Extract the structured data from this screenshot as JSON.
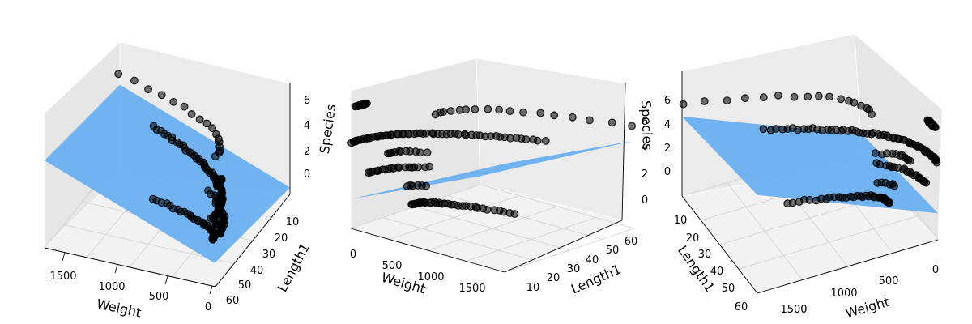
{
  "chart_data": [
    {
      "type": "scatter3d",
      "view": "left",
      "title": "",
      "xlabel": "Weight",
      "ylabel": "Length1",
      "zlabel": "Species",
      "xticks": [
        "1500",
        "1000",
        "500",
        "0"
      ],
      "yticks": [
        "10",
        "20",
        "30",
        "40",
        "50",
        "60"
      ],
      "zticks": [
        "0",
        "2",
        "4",
        "6"
      ],
      "xlim": [
        0,
        1650
      ],
      "ylim": [
        7,
        60
      ],
      "zlim": [
        -1,
        7
      ],
      "plane_color": "#6ab0f0",
      "point_color": "#000000",
      "plane_corners": [
        [
          0,
          7,
          0.7
        ],
        [
          1650,
          7,
          5.3
        ],
        [
          1650,
          60,
          4.1
        ],
        [
          0,
          60,
          -0.5
        ]
      ]
    },
    {
      "type": "scatter3d",
      "view": "front",
      "title": "",
      "xlabel": "Weight",
      "ylabel": "Length1",
      "zlabel": "Species",
      "xticks": [
        "0",
        "500",
        "1000",
        "1500"
      ],
      "yticks": [
        "10",
        "20",
        "30",
        "40",
        "50",
        "60"
      ],
      "zticks": [
        "0",
        "2",
        "4",
        "6"
      ],
      "xlim": [
        0,
        1650
      ],
      "ylim": [
        7,
        60
      ],
      "zlim": [
        -1,
        7
      ],
      "plane_color": "#6ab0f0",
      "point_color": "#000000",
      "plane_corners": [
        [
          0,
          7,
          0.7
        ],
        [
          1650,
          7,
          5.3
        ],
        [
          1650,
          60,
          4.1
        ],
        [
          0,
          60,
          -0.5
        ]
      ]
    },
    {
      "type": "scatter3d",
      "view": "right",
      "title": "",
      "xlabel": "Weight",
      "ylabel": "Length1",
      "zlabel": "",
      "xticks": [
        "1500",
        "1000",
        "500",
        "0"
      ],
      "yticks": [
        "10",
        "20",
        "30",
        "40",
        "50",
        "60"
      ],
      "zticks": [
        "0",
        "2",
        "4",
        "6"
      ],
      "xlim": [
        0,
        1650
      ],
      "ylim": [
        7,
        60
      ],
      "zlim": [
        -1,
        7
      ],
      "plane_color": "#6ab0f0",
      "point_color": "#000000",
      "plane_corners": [
        [
          0,
          7,
          0.7
        ],
        [
          1650,
          7,
          5.3
        ],
        [
          1650,
          60,
          4.1
        ],
        [
          0,
          60,
          -0.5
        ]
      ]
    }
  ]
}
